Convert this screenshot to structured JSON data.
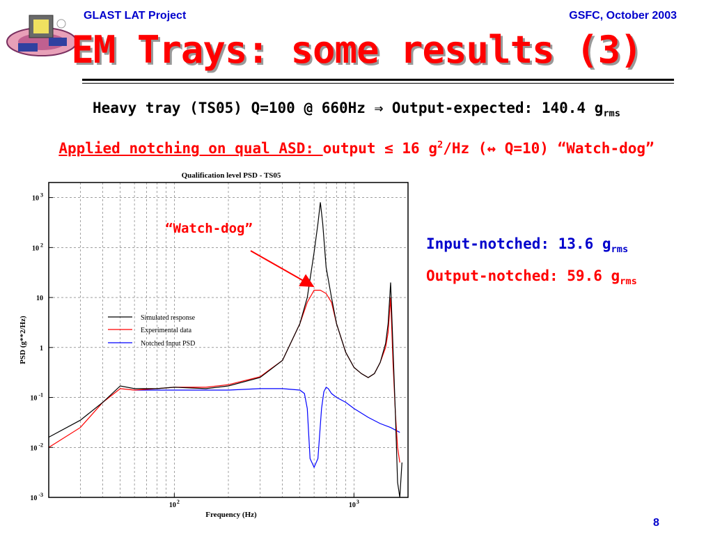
{
  "header": {
    "left": "GLAST LAT Project",
    "right": "GSFC, October 2003",
    "title": "EM Trays: some results (3)"
  },
  "line1": {
    "main": "Heavy tray (TS05) Q=100 @ 660Hz ",
    "arrow": "⇒",
    "mid": " Output-expected: 140.4 g",
    "sub": "rms"
  },
  "line2": {
    "underlined": "Applied notching on qual ASD: ",
    "rest1": "output ≤ 16 g",
    "sup": "2",
    "rest2": "/Hz (",
    "arrow": "↔",
    "rest3": " Q=10) “Watch-dog”"
  },
  "results": {
    "input_label": "Input-notched:  13.6 g",
    "input_sub": "rms",
    "output_label": "Output-notched: 59.6 g",
    "output_sub": "rms"
  },
  "page_number": "8",
  "colors": {
    "header": "#0000cc",
    "title": "#ff0000",
    "simulated": "#000000",
    "experimental": "#ff0000",
    "notched": "#0000ff"
  },
  "chart_data": {
    "type": "line",
    "title": "Qualification level PSD - TS05",
    "xlabel": "Frequency (Hz)",
    "ylabel": "PSD (g**2/Hz)",
    "xscale": "log",
    "yscale": "log",
    "xlim": [
      20,
      2000
    ],
    "ylim": [
      0.001,
      2000
    ],
    "x_ticks": [
      {
        "base": "10",
        "exp": "2",
        "value": 100
      },
      {
        "base": "10",
        "exp": "3",
        "value": 1000
      }
    ],
    "y_ticks": [
      {
        "base": "10",
        "exp": "3",
        "value": 1000
      },
      {
        "base": "10",
        "exp": "2",
        "value": 100
      },
      {
        "base": "10",
        "exp": "",
        "value": 10
      },
      {
        "base": "1",
        "exp": "",
        "value": 1
      },
      {
        "base": "10",
        "exp": "-1",
        "value": 0.1
      },
      {
        "base": "10",
        "exp": "-2",
        "value": 0.01
      },
      {
        "base": "10",
        "exp": "-3",
        "value": 0.001
      }
    ],
    "grid": true,
    "legend": "center-left",
    "annotation": "“Watch-dog”",
    "series": [
      {
        "name": "Simulated response",
        "color": "#000000",
        "x": [
          20,
          30,
          40,
          50,
          60,
          80,
          100,
          150,
          200,
          300,
          400,
          500,
          550,
          600,
          630,
          650,
          670,
          700,
          750,
          800,
          900,
          1000,
          1100,
          1200,
          1300,
          1400,
          1500,
          1550,
          1600,
          1650,
          1700,
          1750,
          1800,
          1850
        ],
        "y": [
          0.016,
          0.035,
          0.08,
          0.17,
          0.15,
          0.15,
          0.16,
          0.15,
          0.17,
          0.25,
          0.55,
          3,
          10,
          80,
          300,
          800,
          300,
          40,
          10,
          3,
          0.8,
          0.4,
          0.3,
          0.25,
          0.3,
          0.5,
          1.2,
          3,
          20,
          1,
          0.05,
          0.002,
          0.001,
          0.005
        ]
      },
      {
        "name": "Experimental data",
        "color": "#ff0000",
        "x": [
          20,
          30,
          40,
          50,
          60,
          80,
          100,
          150,
          200,
          300,
          400,
          500,
          550,
          600,
          650,
          700,
          750,
          800,
          900,
          1000,
          1100,
          1200,
          1300,
          1400,
          1500,
          1550,
          1600,
          1650,
          1700,
          1750,
          1800
        ],
        "y": [
          0.01,
          0.025,
          0.08,
          0.15,
          0.14,
          0.15,
          0.16,
          0.16,
          0.18,
          0.26,
          0.55,
          3,
          8,
          14,
          14,
          12,
          8,
          3,
          0.8,
          0.4,
          0.3,
          0.25,
          0.3,
          0.5,
          1,
          2,
          10,
          0.5,
          0.05,
          0.01,
          0.005
        ]
      },
      {
        "name": "Notched Input PSD",
        "color": "#0000ff",
        "x": [
          60,
          100,
          200,
          300,
          400,
          500,
          530,
          550,
          570,
          600,
          630,
          660,
          680,
          700,
          720,
          750,
          800,
          900,
          1000,
          1200,
          1400,
          1600,
          1800
        ],
        "y": [
          0.14,
          0.14,
          0.14,
          0.15,
          0.15,
          0.14,
          0.12,
          0.06,
          0.006,
          0.004,
          0.006,
          0.06,
          0.13,
          0.16,
          0.15,
          0.12,
          0.1,
          0.08,
          0.06,
          0.04,
          0.03,
          0.025,
          0.02
        ]
      }
    ]
  }
}
